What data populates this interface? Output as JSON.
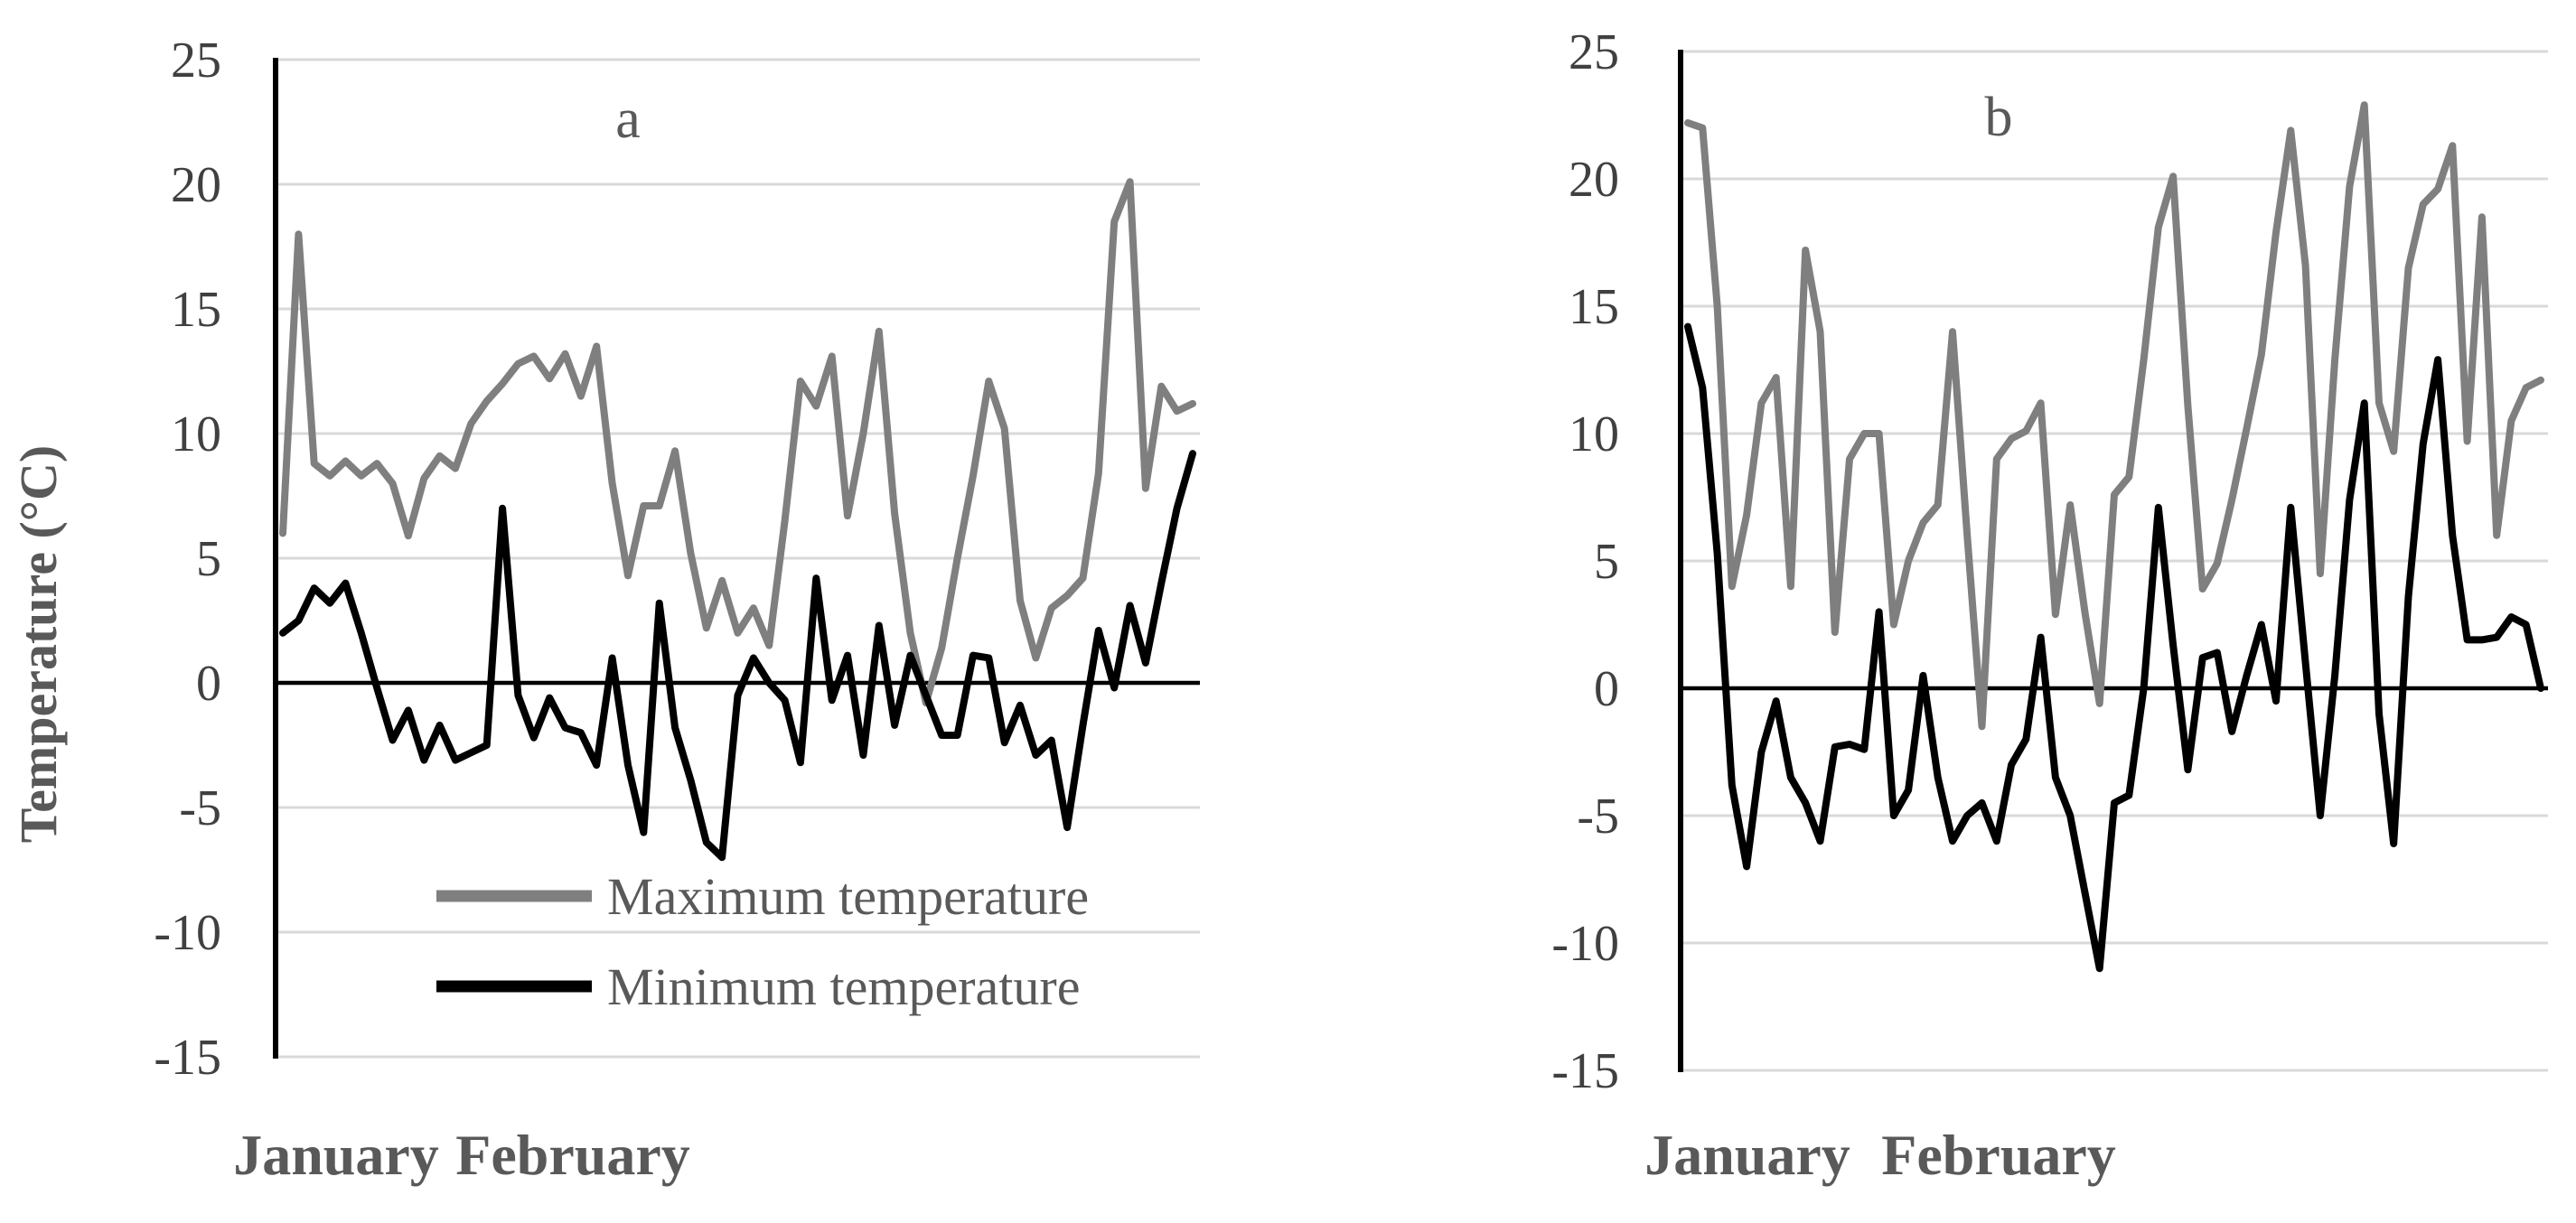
{
  "figure": {
    "background": "#ffffff",
    "panel_a_corner_label": "a",
    "panel_b_corner_label": "b"
  },
  "y_axis": {
    "title": "Temperature (°C)",
    "tick_labels": [
      "25",
      "20",
      "15",
      "10",
      "5",
      "0",
      "-5",
      "-10",
      "-15"
    ],
    "tick_values": [
      25,
      20,
      15,
      10,
      5,
      0,
      -5,
      -10,
      -15
    ],
    "min": -15,
    "max": 25
  },
  "x_axis": {
    "month_labels": [
      "January",
      "February"
    ]
  },
  "legend": {
    "position": "inside-bottom-left-of-panel-a",
    "items": [
      {
        "label": "Maximum temperature",
        "color": "#7f7f7f"
      },
      {
        "label": "Minimum temperature",
        "color": "#000000"
      }
    ]
  },
  "colors": {
    "max_line": "#7f7f7f",
    "min_line": "#000000",
    "gridline": "#d9d9d9",
    "axis_line": "#000000",
    "zero_line": "#000000",
    "label_text": "#595959",
    "tick_text": "#404040",
    "background": "#ffffff"
  },
  "chart_data": [
    {
      "type": "line",
      "panel": "a",
      "corner_label": "a",
      "x": "days of January (31) and February (28)",
      "categories_months": [
        "January",
        "February"
      ],
      "n_points": 59,
      "ylim": [
        -15,
        25
      ],
      "grid": true,
      "legend_position": "inside bottom-left",
      "series": [
        {
          "name": "Maximum temperature",
          "color": "#7f7f7f",
          "values": [
            6,
            18,
            8.8,
            8.3,
            8.9,
            8.3,
            8.8,
            8,
            5.9,
            8.2,
            9.1,
            8.6,
            10.4,
            11.3,
            12,
            12.8,
            13.1,
            12.2,
            13.2,
            11.5,
            13.5,
            8,
            4.3,
            7.1,
            7.1,
            9.3,
            5.2,
            2.2,
            4.1,
            2,
            3,
            1.5,
            6.5,
            12.1,
            11.1,
            13.1,
            6.7,
            10,
            14.1,
            6.8,
            2,
            -0.8,
            1.4,
            5,
            8.3,
            12.1,
            10.2,
            3.3,
            1,
            3,
            3.5,
            4.2,
            8.4,
            18.5,
            20.1,
            7.8,
            11.9,
            10.9,
            11.2
          ]
        },
        {
          "name": "Minimum temperature",
          "color": "#000000",
          "values": [
            2,
            2.5,
            3.8,
            3.2,
            4,
            2,
            -0.2,
            -2.3,
            -1.1,
            -3.1,
            -1.7,
            -3.1,
            -2.8,
            -2.5,
            7,
            -0.5,
            -2.2,
            -0.6,
            -1.8,
            -2,
            -3.3,
            1,
            -3.3,
            -6,
            3.2,
            -1.8,
            -3.9,
            -6.4,
            -7,
            -0.5,
            1,
            0,
            -0.7,
            -3.2,
            4.2,
            -0.7,
            1.1,
            -2.9,
            2.3,
            -1.7,
            1.1,
            -0.5,
            -2.1,
            -2.1,
            1.1,
            1,
            -2.4,
            -0.9,
            -2.9,
            -2.3,
            -5.8,
            -1.7,
            2.1,
            -0.2,
            3.1,
            0.8,
            4,
            7,
            9.2
          ]
        }
      ]
    },
    {
      "type": "line",
      "panel": "b",
      "corner_label": "b",
      "x": "days of January (31) and February (28)",
      "categories_months": [
        "January",
        "February"
      ],
      "n_points": 59,
      "ylim": [
        -15,
        25
      ],
      "grid": true,
      "legend_position": "none",
      "series": [
        {
          "name": "Maximum temperature",
          "color": "#7f7f7f",
          "values": [
            22.2,
            22,
            15,
            4,
            6.8,
            11.2,
            12.2,
            4,
            17.2,
            14,
            2.2,
            9,
            10,
            10,
            2.5,
            5,
            6.5,
            7.2,
            14,
            6,
            -1.5,
            9,
            9.8,
            10.1,
            11.2,
            2.9,
            7.2,
            3,
            -0.6,
            7.6,
            8.3,
            12.9,
            18.1,
            20.1,
            11.1,
            3.9,
            4.9,
            7.4,
            10.2,
            13.1,
            17.9,
            21.9,
            16.6,
            4.5,
            12.9,
            19.7,
            22.9,
            11.2,
            9.3,
            16.5,
            19,
            19.6,
            21.3,
            9.7,
            18.5,
            6,
            10.5,
            11.8,
            12.1
          ]
        },
        {
          "name": "Minimum temperature",
          "color": "#000000",
          "values": [
            14.2,
            11.8,
            5.3,
            -3.8,
            -7,
            -2.5,
            -0.5,
            -3.5,
            -4.5,
            -6,
            -2.3,
            -2.2,
            -2.4,
            3,
            -5,
            -4,
            0.5,
            -3.5,
            -6,
            -5,
            -4.5,
            -6,
            -3,
            -2,
            2,
            -3.5,
            -5,
            -8,
            -11,
            -4.5,
            -4.2,
            0,
            7.1,
            1.7,
            -3.2,
            1.2,
            1.4,
            -1.7,
            0.5,
            2.5,
            -0.5,
            7.1,
            1,
            -5,
            0.5,
            7.4,
            11.2,
            -1,
            -6.1,
            3.6,
            9.6,
            12.9,
            6,
            1.9,
            1.9,
            2,
            2.8,
            2.5,
            0
          ]
        }
      ]
    }
  ]
}
